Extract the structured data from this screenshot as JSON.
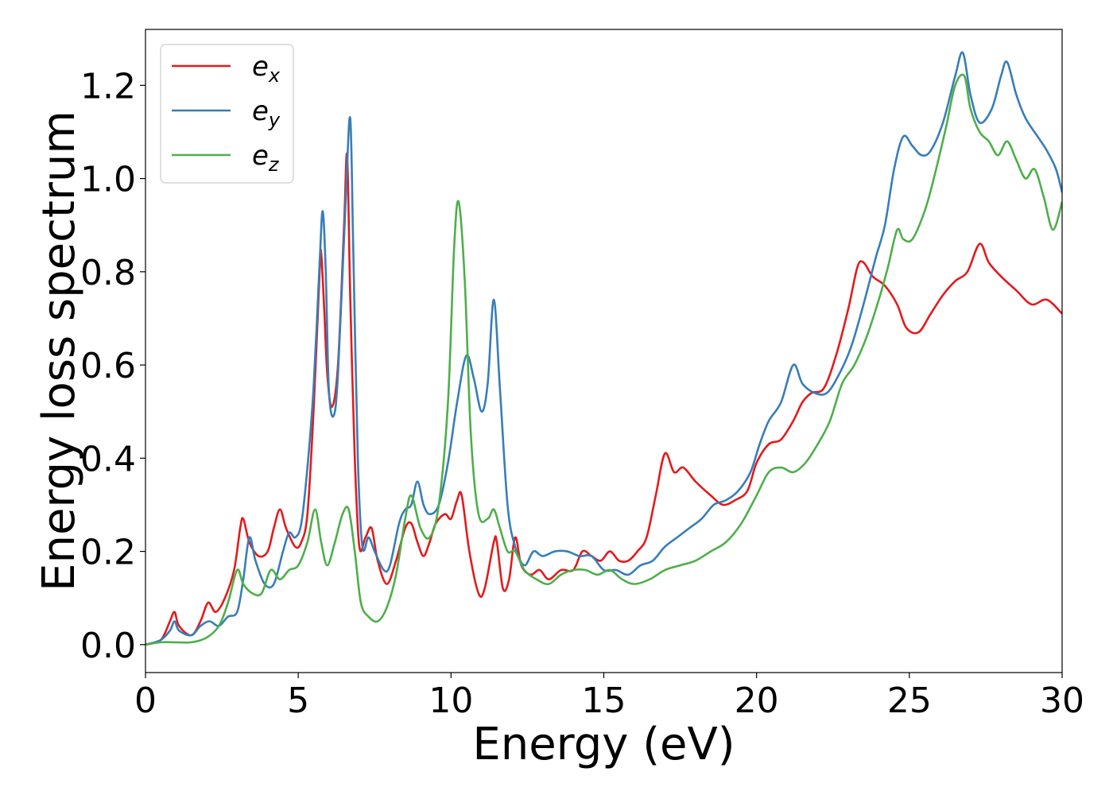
{
  "chart_data": {
    "type": "line",
    "title": "",
    "xlabel": "Energy (eV)",
    "ylabel": "Energy loss spectrum",
    "xlim": [
      0,
      30
    ],
    "ylim": [
      -0.06,
      1.32
    ],
    "xticks": [
      0,
      5,
      10,
      15,
      20,
      25,
      30
    ],
    "xtick_labels": [
      "0",
      "5",
      "10",
      "15",
      "20",
      "25",
      "30"
    ],
    "yticks": [
      0.0,
      0.2,
      0.4,
      0.6,
      0.8,
      1.0,
      1.2
    ],
    "ytick_labels": [
      "0.0",
      "0.2",
      "0.4",
      "0.6",
      "0.8",
      "1.0",
      "1.2"
    ],
    "grid": false,
    "legend_position": "top-left",
    "series": [
      {
        "name": "e",
        "subscript": "x",
        "color": "#e41a1c",
        "points": [
          [
            0,
            0
          ],
          [
            0.5,
            0.01
          ],
          [
            0.8,
            0.05
          ],
          [
            0.95,
            0.07
          ],
          [
            1.1,
            0.04
          ],
          [
            1.5,
            0.02
          ],
          [
            1.8,
            0.05
          ],
          [
            2.05,
            0.09
          ],
          [
            2.3,
            0.07
          ],
          [
            2.6,
            0.1
          ],
          [
            2.9,
            0.16
          ],
          [
            3.1,
            0.25
          ],
          [
            3.2,
            0.27
          ],
          [
            3.4,
            0.22
          ],
          [
            3.7,
            0.19
          ],
          [
            4.0,
            0.2
          ],
          [
            4.2,
            0.25
          ],
          [
            4.4,
            0.29
          ],
          [
            4.6,
            0.25
          ],
          [
            4.9,
            0.21
          ],
          [
            5.1,
            0.22
          ],
          [
            5.3,
            0.28
          ],
          [
            5.5,
            0.5
          ],
          [
            5.7,
            0.8
          ],
          [
            5.75,
            0.84
          ],
          [
            5.85,
            0.72
          ],
          [
            5.95,
            0.58
          ],
          [
            6.1,
            0.51
          ],
          [
            6.3,
            0.6
          ],
          [
            6.5,
            0.9
          ],
          [
            6.6,
            1.05
          ],
          [
            6.7,
            0.75
          ],
          [
            6.85,
            0.4
          ],
          [
            7.0,
            0.21
          ],
          [
            7.2,
            0.23
          ],
          [
            7.4,
            0.25
          ],
          [
            7.6,
            0.18
          ],
          [
            7.9,
            0.13
          ],
          [
            8.2,
            0.18
          ],
          [
            8.5,
            0.25
          ],
          [
            8.7,
            0.26
          ],
          [
            8.9,
            0.22
          ],
          [
            9.1,
            0.19
          ],
          [
            9.3,
            0.22
          ],
          [
            9.5,
            0.26
          ],
          [
            9.8,
            0.28
          ],
          [
            10.0,
            0.27
          ],
          [
            10.2,
            0.31
          ],
          [
            10.35,
            0.32
          ],
          [
            10.6,
            0.2
          ],
          [
            10.9,
            0.11
          ],
          [
            11.1,
            0.12
          ],
          [
            11.4,
            0.22
          ],
          [
            11.5,
            0.22
          ],
          [
            11.7,
            0.12
          ],
          [
            11.9,
            0.14
          ],
          [
            12.1,
            0.23
          ],
          [
            12.3,
            0.17
          ],
          [
            12.6,
            0.15
          ],
          [
            12.9,
            0.16
          ],
          [
            13.2,
            0.14
          ],
          [
            13.6,
            0.16
          ],
          [
            14.0,
            0.16
          ],
          [
            14.3,
            0.2
          ],
          [
            14.6,
            0.19
          ],
          [
            14.9,
            0.18
          ],
          [
            15.2,
            0.2
          ],
          [
            15.5,
            0.18
          ],
          [
            15.8,
            0.18
          ],
          [
            16.1,
            0.2
          ],
          [
            16.4,
            0.23
          ],
          [
            16.7,
            0.32
          ],
          [
            17.0,
            0.41
          ],
          [
            17.3,
            0.37
          ],
          [
            17.6,
            0.38
          ],
          [
            18.0,
            0.35
          ],
          [
            18.5,
            0.32
          ],
          [
            18.9,
            0.3
          ],
          [
            19.3,
            0.31
          ],
          [
            19.7,
            0.33
          ],
          [
            20.0,
            0.39
          ],
          [
            20.4,
            0.43
          ],
          [
            20.8,
            0.44
          ],
          [
            21.2,
            0.48
          ],
          [
            21.5,
            0.52
          ],
          [
            21.8,
            0.54
          ],
          [
            22.2,
            0.55
          ],
          [
            22.6,
            0.62
          ],
          [
            23.0,
            0.72
          ],
          [
            23.3,
            0.81
          ],
          [
            23.5,
            0.82
          ],
          [
            23.8,
            0.79
          ],
          [
            24.2,
            0.77
          ],
          [
            24.6,
            0.73
          ],
          [
            24.9,
            0.68
          ],
          [
            25.3,
            0.67
          ],
          [
            25.7,
            0.71
          ],
          [
            26.1,
            0.75
          ],
          [
            26.5,
            0.78
          ],
          [
            26.9,
            0.8
          ],
          [
            27.3,
            0.86
          ],
          [
            27.6,
            0.82
          ],
          [
            28.0,
            0.79
          ],
          [
            28.5,
            0.76
          ],
          [
            29.0,
            0.73
          ],
          [
            29.5,
            0.74
          ],
          [
            30.0,
            0.71
          ]
        ]
      },
      {
        "name": "e",
        "subscript": "y",
        "color": "#377eb8",
        "points": [
          [
            0,
            0
          ],
          [
            0.5,
            0.01
          ],
          [
            0.8,
            0.03
          ],
          [
            0.95,
            0.05
          ],
          [
            1.1,
            0.03
          ],
          [
            1.5,
            0.02
          ],
          [
            1.8,
            0.04
          ],
          [
            2.1,
            0.05
          ],
          [
            2.4,
            0.04
          ],
          [
            2.7,
            0.06
          ],
          [
            3.0,
            0.07
          ],
          [
            3.2,
            0.14
          ],
          [
            3.4,
            0.23
          ],
          [
            3.6,
            0.18
          ],
          [
            3.9,
            0.13
          ],
          [
            4.2,
            0.13
          ],
          [
            4.5,
            0.2
          ],
          [
            4.7,
            0.24
          ],
          [
            4.9,
            0.23
          ],
          [
            5.1,
            0.26
          ],
          [
            5.3,
            0.38
          ],
          [
            5.5,
            0.55
          ],
          [
            5.7,
            0.82
          ],
          [
            5.8,
            0.93
          ],
          [
            5.9,
            0.8
          ],
          [
            6.0,
            0.55
          ],
          [
            6.15,
            0.49
          ],
          [
            6.3,
            0.58
          ],
          [
            6.55,
            0.95
          ],
          [
            6.7,
            1.13
          ],
          [
            6.8,
            0.85
          ],
          [
            6.95,
            0.4
          ],
          [
            7.1,
            0.21
          ],
          [
            7.3,
            0.23
          ],
          [
            7.5,
            0.2
          ],
          [
            7.8,
            0.16
          ],
          [
            8.0,
            0.17
          ],
          [
            8.3,
            0.26
          ],
          [
            8.5,
            0.29
          ],
          [
            8.7,
            0.3
          ],
          [
            8.9,
            0.35
          ],
          [
            9.1,
            0.3
          ],
          [
            9.3,
            0.28
          ],
          [
            9.6,
            0.3
          ],
          [
            9.9,
            0.39
          ],
          [
            10.2,
            0.52
          ],
          [
            10.5,
            0.62
          ],
          [
            10.75,
            0.57
          ],
          [
            11.0,
            0.5
          ],
          [
            11.2,
            0.56
          ],
          [
            11.4,
            0.74
          ],
          [
            11.6,
            0.55
          ],
          [
            11.85,
            0.3
          ],
          [
            12.1,
            0.21
          ],
          [
            12.4,
            0.17
          ],
          [
            12.7,
            0.2
          ],
          [
            13.0,
            0.19
          ],
          [
            13.4,
            0.2
          ],
          [
            13.8,
            0.2
          ],
          [
            14.2,
            0.19
          ],
          [
            14.6,
            0.19
          ],
          [
            15.0,
            0.16
          ],
          [
            15.4,
            0.16
          ],
          [
            15.8,
            0.15
          ],
          [
            16.2,
            0.17
          ],
          [
            16.6,
            0.18
          ],
          [
            17.0,
            0.21
          ],
          [
            17.4,
            0.23
          ],
          [
            17.8,
            0.25
          ],
          [
            18.2,
            0.27
          ],
          [
            18.6,
            0.3
          ],
          [
            19.0,
            0.31
          ],
          [
            19.4,
            0.33
          ],
          [
            19.8,
            0.37
          ],
          [
            20.1,
            0.43
          ],
          [
            20.4,
            0.48
          ],
          [
            20.8,
            0.52
          ],
          [
            21.2,
            0.6
          ],
          [
            21.5,
            0.56
          ],
          [
            21.9,
            0.54
          ],
          [
            22.3,
            0.54
          ],
          [
            22.7,
            0.58
          ],
          [
            23.1,
            0.64
          ],
          [
            23.5,
            0.73
          ],
          [
            23.9,
            0.83
          ],
          [
            24.2,
            0.9
          ],
          [
            24.5,
            1.02
          ],
          [
            24.8,
            1.09
          ],
          [
            25.1,
            1.07
          ],
          [
            25.4,
            1.05
          ],
          [
            25.7,
            1.06
          ],
          [
            26.1,
            1.12
          ],
          [
            26.5,
            1.22
          ],
          [
            26.75,
            1.27
          ],
          [
            27.0,
            1.18
          ],
          [
            27.3,
            1.12
          ],
          [
            27.7,
            1.15
          ],
          [
            28.0,
            1.22
          ],
          [
            28.2,
            1.25
          ],
          [
            28.5,
            1.18
          ],
          [
            28.8,
            1.13
          ],
          [
            29.2,
            1.09
          ],
          [
            29.5,
            1.06
          ],
          [
            29.8,
            1.02
          ],
          [
            30.0,
            0.97
          ]
        ]
      },
      {
        "name": "e",
        "subscript": "z",
        "color": "#4daf4a",
        "points": [
          [
            0,
            0
          ],
          [
            0.5,
            0.005
          ],
          [
            1.0,
            0.005
          ],
          [
            1.5,
            0.005
          ],
          [
            2.0,
            0.015
          ],
          [
            2.4,
            0.04
          ],
          [
            2.7,
            0.09
          ],
          [
            3.0,
            0.16
          ],
          [
            3.2,
            0.13
          ],
          [
            3.5,
            0.11
          ],
          [
            3.8,
            0.11
          ],
          [
            4.1,
            0.16
          ],
          [
            4.4,
            0.14
          ],
          [
            4.7,
            0.16
          ],
          [
            5.0,
            0.17
          ],
          [
            5.3,
            0.22
          ],
          [
            5.55,
            0.29
          ],
          [
            5.75,
            0.22
          ],
          [
            5.95,
            0.17
          ],
          [
            6.2,
            0.22
          ],
          [
            6.45,
            0.28
          ],
          [
            6.65,
            0.29
          ],
          [
            6.85,
            0.2
          ],
          [
            7.05,
            0.09
          ],
          [
            7.3,
            0.06
          ],
          [
            7.6,
            0.05
          ],
          [
            7.9,
            0.08
          ],
          [
            8.2,
            0.15
          ],
          [
            8.5,
            0.27
          ],
          [
            8.7,
            0.32
          ],
          [
            9.0,
            0.25
          ],
          [
            9.3,
            0.23
          ],
          [
            9.6,
            0.3
          ],
          [
            9.9,
            0.52
          ],
          [
            10.1,
            0.85
          ],
          [
            10.25,
            0.95
          ],
          [
            10.45,
            0.78
          ],
          [
            10.65,
            0.45
          ],
          [
            10.9,
            0.28
          ],
          [
            11.2,
            0.27
          ],
          [
            11.4,
            0.29
          ],
          [
            11.6,
            0.25
          ],
          [
            11.85,
            0.2
          ],
          [
            12.1,
            0.2
          ],
          [
            12.4,
            0.16
          ],
          [
            12.8,
            0.14
          ],
          [
            13.2,
            0.13
          ],
          [
            13.6,
            0.15
          ],
          [
            14.0,
            0.16
          ],
          [
            14.4,
            0.16
          ],
          [
            14.8,
            0.15
          ],
          [
            15.2,
            0.16
          ],
          [
            15.6,
            0.14
          ],
          [
            16.0,
            0.13
          ],
          [
            16.5,
            0.14
          ],
          [
            17.0,
            0.16
          ],
          [
            17.5,
            0.17
          ],
          [
            18.0,
            0.18
          ],
          [
            18.5,
            0.2
          ],
          [
            19.0,
            0.22
          ],
          [
            19.5,
            0.26
          ],
          [
            20.0,
            0.32
          ],
          [
            20.4,
            0.37
          ],
          [
            20.8,
            0.38
          ],
          [
            21.2,
            0.37
          ],
          [
            21.6,
            0.39
          ],
          [
            22.0,
            0.43
          ],
          [
            22.4,
            0.48
          ],
          [
            22.8,
            0.56
          ],
          [
            23.2,
            0.6
          ],
          [
            23.6,
            0.66
          ],
          [
            24.0,
            0.74
          ],
          [
            24.3,
            0.81
          ],
          [
            24.6,
            0.89
          ],
          [
            24.8,
            0.87
          ],
          [
            25.1,
            0.87
          ],
          [
            25.5,
            0.93
          ],
          [
            25.8,
            1.0
          ],
          [
            26.2,
            1.11
          ],
          [
            26.5,
            1.2
          ],
          [
            26.8,
            1.22
          ],
          [
            27.0,
            1.15
          ],
          [
            27.3,
            1.1
          ],
          [
            27.6,
            1.08
          ],
          [
            27.9,
            1.05
          ],
          [
            28.2,
            1.08
          ],
          [
            28.5,
            1.04
          ],
          [
            28.8,
            1.0
          ],
          [
            29.1,
            1.02
          ],
          [
            29.4,
            0.96
          ],
          [
            29.7,
            0.89
          ],
          [
            30.0,
            0.95
          ]
        ]
      }
    ]
  }
}
